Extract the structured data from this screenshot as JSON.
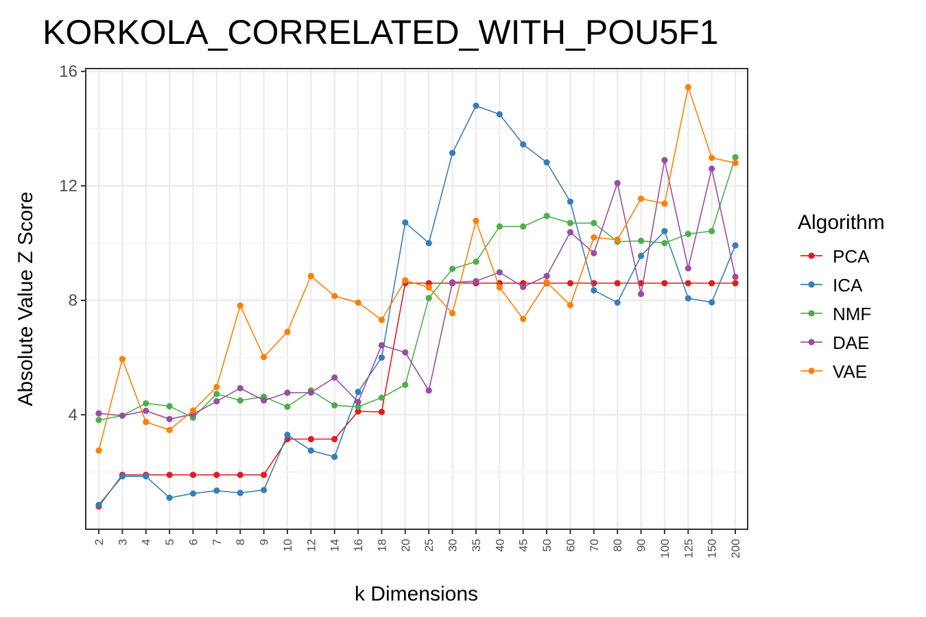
{
  "chart_data": {
    "type": "line",
    "title": "KORKOLA_CORRELATED_WITH_POU5F1",
    "xlabel": "k Dimensions",
    "ylabel": "Absolute Value Z Score",
    "categories": [
      "2",
      "3",
      "4",
      "5",
      "6",
      "7",
      "8",
      "9",
      "10",
      "12",
      "14",
      "16",
      "18",
      "20",
      "25",
      "30",
      "35",
      "40",
      "45",
      "50",
      "60",
      "70",
      "80",
      "90",
      "100",
      "125",
      "150",
      "200"
    ],
    "yticks": [
      4,
      8,
      12,
      16
    ],
    "ylim": [
      0.0,
      16.1
    ],
    "grid": true,
    "legend": {
      "title": "Algorithm",
      "position": "right"
    },
    "series": [
      {
        "name": "PCA",
        "color": "#E41A1C",
        "values": [
          0.8,
          1.9,
          1.9,
          1.9,
          1.9,
          1.9,
          1.9,
          1.9,
          3.15,
          3.15,
          3.15,
          4.12,
          4.1,
          8.6,
          8.6,
          8.6,
          8.6,
          8.6,
          8.6,
          8.6,
          8.6,
          8.6,
          8.6,
          8.6,
          8.6,
          8.6,
          8.6,
          8.6
        ]
      },
      {
        "name": "ICA",
        "color": "#377EB8",
        "values": [
          0.85,
          1.85,
          1.85,
          1.1,
          1.25,
          1.35,
          1.27,
          1.37,
          3.3,
          2.75,
          2.53,
          4.8,
          6.0,
          10.72,
          10.0,
          13.15,
          14.8,
          14.5,
          13.45,
          12.82,
          11.45,
          8.35,
          7.92,
          9.55,
          10.42,
          8.07,
          7.93,
          9.92
        ]
      },
      {
        "name": "NMF",
        "color": "#4DAF4A",
        "values": [
          3.82,
          3.97,
          4.4,
          4.3,
          3.9,
          4.73,
          4.5,
          4.63,
          4.28,
          4.85,
          4.33,
          4.28,
          4.6,
          5.05,
          8.08,
          9.1,
          9.35,
          10.58,
          10.58,
          10.95,
          10.7,
          10.7,
          10.05,
          10.08,
          10.0,
          10.32,
          10.42,
          13.0
        ]
      },
      {
        "name": "DAE",
        "color": "#984EA3",
        "values": [
          4.05,
          3.97,
          4.14,
          3.85,
          4.02,
          4.47,
          4.93,
          4.5,
          4.77,
          4.78,
          5.3,
          4.45,
          6.43,
          6.18,
          4.85,
          8.63,
          8.67,
          8.98,
          8.47,
          8.85,
          10.38,
          9.65,
          12.1,
          8.22,
          12.9,
          9.12,
          12.6,
          8.82
        ]
      },
      {
        "name": "VAE",
        "color": "#FF7F00",
        "values": [
          2.75,
          5.95,
          3.75,
          3.47,
          4.15,
          4.97,
          7.82,
          6.02,
          6.9,
          8.85,
          8.15,
          7.92,
          7.32,
          8.7,
          8.45,
          7.55,
          10.78,
          8.45,
          7.35,
          8.63,
          7.83,
          10.2,
          10.12,
          11.55,
          11.38,
          15.45,
          12.98,
          12.8
        ]
      }
    ]
  }
}
